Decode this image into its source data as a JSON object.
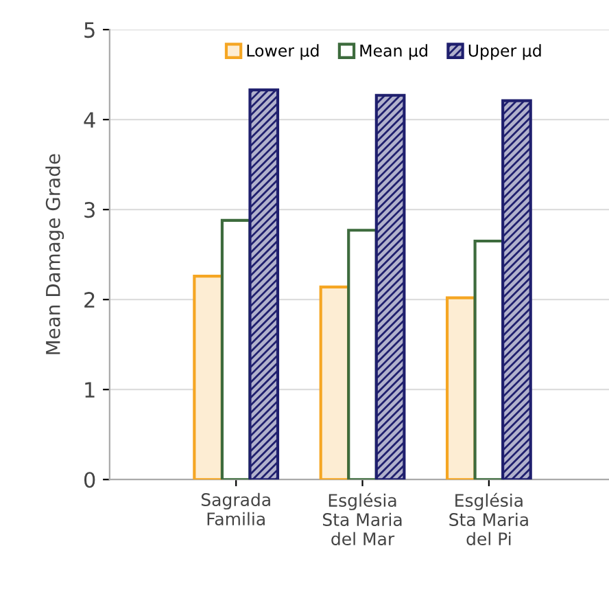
{
  "chart_data": {
    "type": "bar",
    "ylabel": "Mean Damage Grade",
    "categories": [
      "Sagrada\nFamilia",
      "Església\nSta Maria\ndel Mar",
      "Església\nSta Maria\ndel Pi"
    ],
    "series": [
      {
        "name": "Lower µd",
        "color": "#f5a623",
        "values": [
          2.26,
          2.14,
          2.02
        ]
      },
      {
        "name": "Mean µd",
        "color": "#3d6b3d",
        "values": [
          2.88,
          2.77,
          2.65
        ]
      },
      {
        "name": "Upper µd",
        "color": "#1f1f6e",
        "values": [
          4.33,
          4.27,
          4.21
        ]
      }
    ],
    "ylim": [
      0,
      5
    ],
    "yticks": [
      0,
      1,
      2,
      3,
      4,
      5
    ],
    "grid": "y",
    "legend": "top"
  }
}
